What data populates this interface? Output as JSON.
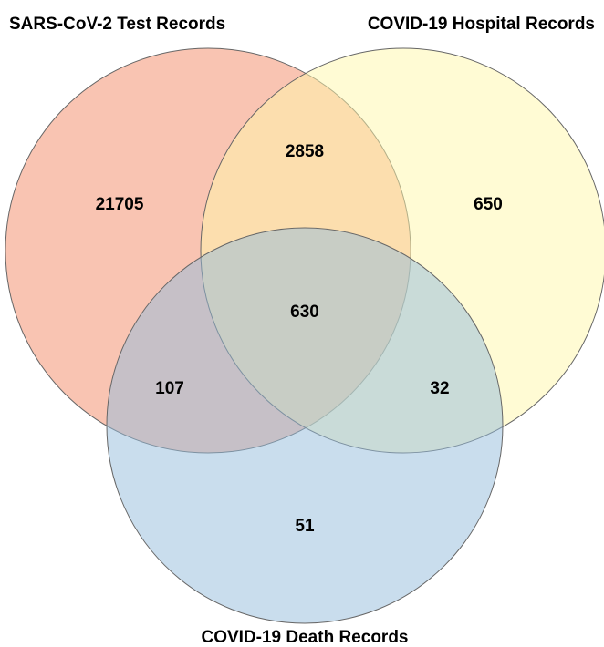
{
  "venn": {
    "sets": {
      "test": {
        "label": "SARS-CoV-2 Test Records",
        "color": "#f48a66"
      },
      "hospital": {
        "label": "COVID-19 Hospital Records",
        "color": "#fff7aa"
      },
      "death": {
        "label": "COVID-19 Death Records",
        "color": "#94bcdc"
      }
    },
    "counts": {
      "test_only": "21705",
      "test_hospital": "2858",
      "hospital_only": "650",
      "all_three": "630",
      "test_death": "107",
      "hospital_death": "32",
      "death_only": "51"
    }
  }
}
